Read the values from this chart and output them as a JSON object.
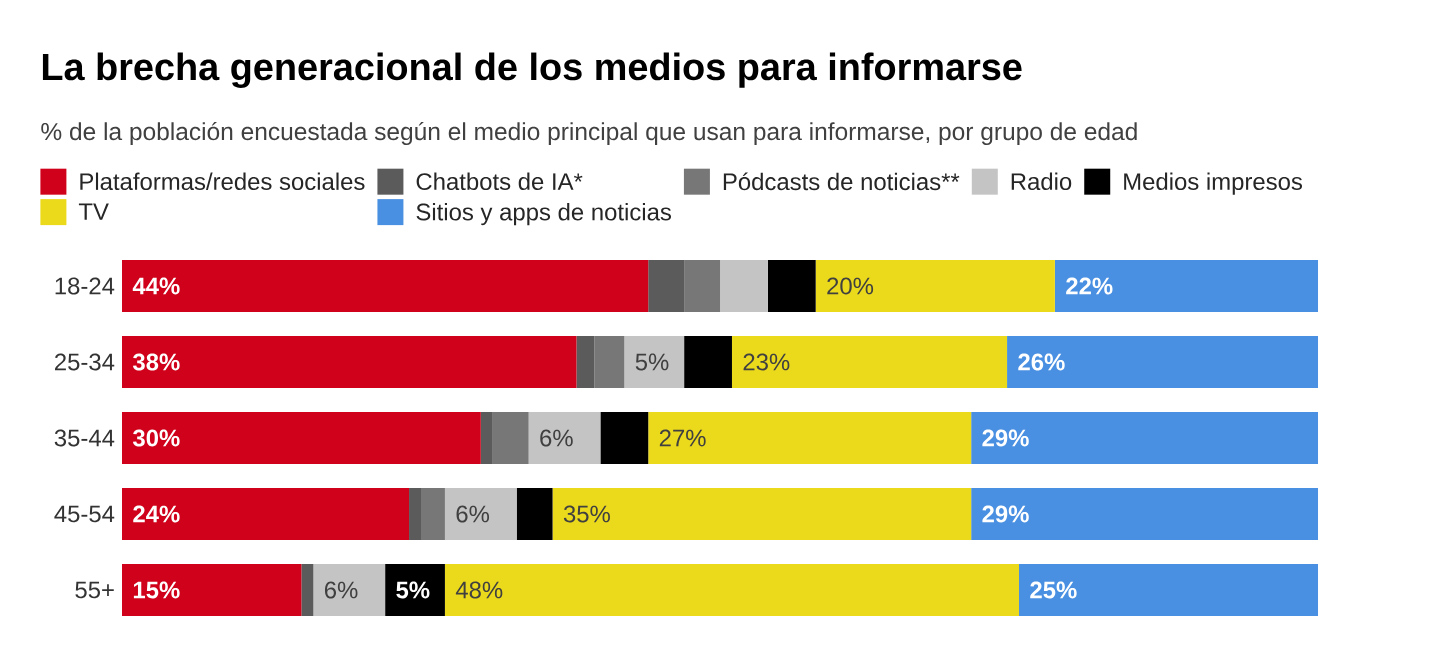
{
  "chart_data": {
    "type": "bar",
    "orientation": "horizontal",
    "stacked": true,
    "title": "La brecha generacional de los medios para informarse",
    "subtitle": "% de la población encuestada según el medio principal que usan para informarse, por grupo de edad",
    "categories": [
      "18-24",
      "25-34",
      "35-44",
      "45-54",
      "55+"
    ],
    "xlim": [
      0,
      100
    ],
    "tick_labels": "y",
    "legend": "top left",
    "series": [
      {
        "name": "Plataformas/redes sociales",
        "color": "#d0021b",
        "values": [
          44,
          38,
          30,
          24,
          15
        ],
        "value_labels": [
          "44%",
          "38%",
          "30%",
          "24%",
          "15%"
        ]
      },
      {
        "name": "Chatbots de IA*",
        "color": "#5b5b5b",
        "values": [
          3,
          1.5,
          1,
          1,
          1
        ]
      },
      {
        "name": "Pódcasts de noticias**",
        "color": "#777777",
        "values": [
          3,
          2.5,
          3,
          2,
          0
        ]
      },
      {
        "name": "Radio",
        "color": "#c4c4c4",
        "values": [
          4,
          5,
          6,
          6,
          6
        ],
        "value_labels": [
          null,
          "5%",
          "6%",
          "6%",
          "6%"
        ]
      },
      {
        "name": "Medios impresos",
        "color": "#000000",
        "values": [
          4,
          4,
          4,
          3,
          5
        ],
        "value_labels": [
          null,
          null,
          null,
          null,
          "5%"
        ]
      },
      {
        "name": "TV",
        "color": "#ebd91c",
        "values": [
          20,
          23,
          27,
          35,
          48
        ],
        "value_labels": [
          "20%",
          "23%",
          "27%",
          "35%",
          "48%"
        ]
      },
      {
        "name": "Sitios y apps de noticias",
        "color": "#4a90e2",
        "values": [
          22,
          26,
          29,
          29,
          25
        ],
        "value_labels": [
          "22%",
          "26%",
          "29%",
          "29%",
          "25%"
        ]
      }
    ]
  }
}
